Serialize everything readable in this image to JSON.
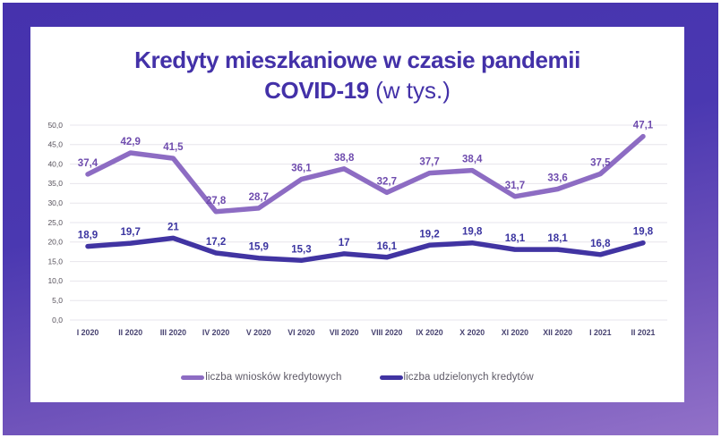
{
  "frame": {
    "gradient_top": "#4632ad",
    "gradient_bottom": "#9271c8",
    "card_background": "#ffffff"
  },
  "title": {
    "line1": "Kredyty mieszkaniowe w czasie pandemii",
    "line2_bold": "COVID-19",
    "line2_rest": " (w tys.)",
    "color": "#4331a8"
  },
  "chart_data": {
    "type": "line",
    "categories": [
      "I 2020",
      "II 2020",
      "III 2020",
      "IV 2020",
      "V 2020",
      "VI 2020",
      "VII 2020",
      "VIII 2020",
      "IX 2020",
      "X 2020",
      "XI 2020",
      "XII 2020",
      "I 2021",
      "II 2021"
    ],
    "series": [
      {
        "name": "liczba wniosków kredytowych",
        "color": "#8d6cc3",
        "label_color": "#6f4cae",
        "values": [
          37.4,
          42.9,
          41.5,
          27.8,
          28.7,
          36.1,
          38.8,
          32.7,
          37.7,
          38.4,
          31.7,
          33.6,
          37.5,
          47.1
        ],
        "labels": [
          "37,4",
          "42,9",
          "41,5",
          "27,8",
          "28,7",
          "36,1",
          "38,8",
          "32,7",
          "37,7",
          "38,4",
          "31,7",
          "33,6",
          "37,5",
          "47,1"
        ]
      },
      {
        "name": "liczba udzielonych kredytów",
        "color": "#4134a2",
        "label_color": "#3b34a0",
        "values": [
          18.9,
          19.7,
          21,
          17.2,
          15.9,
          15.3,
          17,
          16.1,
          19.2,
          19.8,
          18.1,
          18.1,
          16.8,
          19.8
        ],
        "labels": [
          "18,9",
          "19,7",
          "21",
          "17,2",
          "15,9",
          "15,3",
          "17",
          "16,1",
          "19,2",
          "19,8",
          "18,1",
          "18,1",
          "16,8",
          "19,8"
        ]
      }
    ],
    "ylim": [
      0,
      50
    ],
    "y_ticks": [
      "0,0",
      "5,0",
      "10,0",
      "15,0",
      "20,0",
      "25,0",
      "30,0",
      "35,0",
      "40,0",
      "45,0",
      "50,0"
    ],
    "grid": true,
    "gridline_color": "#e7e5ec",
    "y_tick_color": "#55505a",
    "x_tick_color": "#474270",
    "legend_position": "bottom"
  }
}
